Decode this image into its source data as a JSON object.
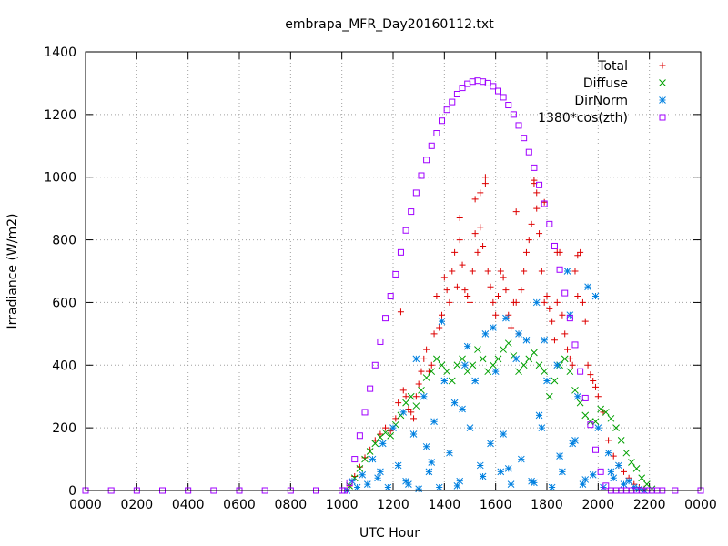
{
  "chart_data": {
    "type": "scatter",
    "title": "embrapa_MFR_Day20160112.txt",
    "xlabel": "UTC Hour",
    "ylabel": "Irradiance (W/m2)",
    "xlim": [
      0,
      24
    ],
    "ylim": [
      0,
      1400
    ],
    "x_tick_labels": [
      "0000",
      "0200",
      "0400",
      "0600",
      "0800",
      "1000",
      "1200",
      "1400",
      "1600",
      "1800",
      "2000",
      "2200",
      "0000"
    ],
    "y_ticks": [
      0,
      200,
      400,
      600,
      800,
      1000,
      1200,
      1400
    ],
    "grid": true,
    "legend_position": "top-right",
    "series": [
      {
        "name": "Total",
        "marker": "plus",
        "color": "#dd0000",
        "x": [
          10.3,
          10.5,
          10.7,
          10.9,
          11.1,
          11.3,
          11.5,
          11.7,
          11.9,
          12.1,
          12.2,
          12.3,
          12.4,
          12.5,
          12.6,
          12.7,
          12.8,
          12.9,
          13.0,
          13.1,
          13.2,
          13.3,
          13.4,
          13.5,
          13.6,
          13.7,
          13.8,
          13.9,
          14.0,
          14.1,
          14.2,
          14.3,
          14.4,
          14.5,
          14.6,
          14.7,
          14.8,
          14.9,
          15.0,
          15.1,
          15.2,
          15.3,
          15.4,
          15.5,
          15.6,
          15.7,
          15.8,
          15.9,
          16.0,
          16.1,
          16.2,
          16.3,
          16.4,
          16.5,
          16.6,
          16.7,
          16.8,
          16.9,
          17.0,
          17.1,
          17.2,
          17.3,
          17.4,
          17.5,
          17.6,
          17.7,
          17.8,
          17.9,
          18.0,
          18.1,
          18.2,
          18.3,
          18.4,
          18.5,
          18.6,
          18.7,
          18.8,
          18.9,
          19.0,
          19.1,
          19.2,
          19.3,
          19.4,
          19.5,
          19.6,
          19.7,
          19.8,
          19.9,
          20.0,
          20.2,
          20.4,
          20.6,
          20.8,
          21.0,
          21.2,
          21.4,
          21.6,
          21.8,
          22.0,
          15.4,
          15.6,
          17.5,
          17.6,
          15.2,
          16.8,
          14.6,
          17.9,
          18.4,
          19.2
        ],
        "y": [
          15,
          45,
          75,
          105,
          130,
          160,
          180,
          200,
          190,
          230,
          280,
          570,
          320,
          300,
          260,
          250,
          230,
          300,
          340,
          380,
          420,
          450,
          380,
          400,
          500,
          620,
          520,
          560,
          680,
          640,
          600,
          700,
          760,
          650,
          800,
          720,
          640,
          620,
          600,
          700,
          820,
          760,
          840,
          780,
          980,
          700,
          650,
          600,
          560,
          620,
          700,
          680,
          640,
          560,
          520,
          600,
          600,
          500,
          640,
          700,
          760,
          800,
          850,
          980,
          900,
          820,
          700,
          600,
          620,
          580,
          540,
          480,
          600,
          760,
          560,
          500,
          450,
          420,
          400,
          700,
          750,
          760,
          600,
          540,
          400,
          370,
          350,
          330,
          300,
          250,
          160,
          110,
          80,
          60,
          40,
          20,
          10,
          5,
          0,
          950,
          1000,
          990,
          950,
          930,
          890,
          870,
          920,
          760,
          620
        ]
      },
      {
        "name": "Diffuse",
        "marker": "cross",
        "color": "#00a000",
        "x": [
          10.3,
          10.5,
          10.7,
          10.9,
          11.1,
          11.3,
          11.5,
          11.7,
          11.9,
          12.1,
          12.3,
          12.5,
          12.7,
          12.9,
          13.1,
          13.3,
          13.5,
          13.7,
          13.9,
          14.1,
          14.3,
          14.5,
          14.7,
          14.9,
          15.1,
          15.3,
          15.5,
          15.7,
          15.9,
          16.1,
          16.3,
          16.5,
          16.7,
          16.9,
          17.1,
          17.3,
          17.5,
          17.7,
          17.9,
          18.1,
          18.3,
          18.5,
          18.7,
          18.9,
          19.1,
          19.3,
          19.5,
          19.7,
          19.9,
          20.1,
          20.3,
          20.5,
          20.7,
          20.9,
          21.1,
          21.3,
          21.5,
          21.7,
          21.9,
          22.1
        ],
        "y": [
          15,
          40,
          70,
          100,
          125,
          150,
          170,
          185,
          175,
          210,
          240,
          280,
          300,
          270,
          320,
          360,
          380,
          420,
          400,
          380,
          350,
          400,
          420,
          380,
          400,
          450,
          420,
          380,
          400,
          420,
          450,
          470,
          430,
          380,
          400,
          420,
          440,
          400,
          380,
          300,
          350,
          400,
          420,
          380,
          320,
          280,
          240,
          220,
          220,
          260,
          250,
          230,
          200,
          160,
          120,
          90,
          70,
          40,
          20,
          5
        ]
      },
      {
        "name": "DirNorm",
        "marker": "star",
        "color": "#0080e0",
        "x": [
          10.2,
          10.4,
          10.6,
          10.8,
          11.0,
          11.2,
          11.4,
          11.6,
          11.8,
          12.0,
          12.2,
          12.4,
          12.6,
          12.8,
          13.0,
          13.2,
          13.4,
          13.6,
          13.8,
          14.0,
          14.2,
          14.4,
          14.6,
          14.8,
          15.0,
          15.2,
          15.4,
          15.6,
          15.8,
          16.0,
          16.2,
          16.4,
          16.6,
          16.8,
          17.0,
          17.2,
          17.4,
          17.6,
          17.8,
          18.0,
          18.2,
          18.4,
          18.6,
          18.8,
          19.0,
          19.2,
          19.4,
          19.6,
          19.8,
          20.0,
          20.2,
          20.4,
          20.6,
          20.8,
          21.0,
          21.2,
          21.4,
          21.6,
          21.8,
          11.5,
          12.5,
          13.5,
          14.5,
          15.5,
          16.5,
          17.5,
          18.5,
          19.5,
          20.5,
          12.9,
          13.9,
          14.9,
          15.9,
          16.9,
          17.9,
          18.9,
          19.9,
          13.3,
          14.7,
          16.3,
          17.7,
          19.1
        ],
        "y": [
          0,
          30,
          10,
          50,
          20,
          100,
          40,
          150,
          10,
          200,
          80,
          250,
          20,
          180,
          5,
          300,
          60,
          220,
          10,
          350,
          120,
          280,
          30,
          400,
          200,
          350,
          80,
          500,
          150,
          380,
          60,
          550,
          20,
          420,
          100,
          480,
          30,
          600,
          200,
          350,
          10,
          400,
          60,
          700,
          150,
          300,
          20,
          650,
          50,
          200,
          10,
          120,
          40,
          80,
          20,
          30,
          10,
          5,
          0,
          60,
          30,
          90,
          15,
          45,
          70,
          25,
          110,
          35,
          60,
          420,
          540,
          460,
          520,
          500,
          480,
          560,
          620,
          140,
          260,
          180,
          240,
          160
        ]
      },
      {
        "name": "1380*cos(zth)",
        "marker": "square",
        "color": "#a000ff",
        "x": [
          0,
          1,
          2,
          3,
          4,
          5,
          6,
          7,
          8,
          9,
          10,
          10.1,
          10.3,
          10.5,
          10.7,
          10.9,
          11.1,
          11.3,
          11.5,
          11.7,
          11.9,
          12.1,
          12.3,
          12.5,
          12.7,
          12.9,
          13.1,
          13.3,
          13.5,
          13.7,
          13.9,
          14.1,
          14.3,
          14.5,
          14.7,
          14.9,
          15.1,
          15.3,
          15.5,
          15.7,
          15.9,
          16.1,
          16.3,
          16.5,
          16.7,
          16.9,
          17.1,
          17.3,
          17.5,
          17.7,
          17.9,
          18.1,
          18.3,
          18.5,
          18.7,
          18.9,
          19.1,
          19.3,
          19.5,
          19.7,
          19.9,
          20.1,
          20.3,
          20.5,
          20.7,
          20.9,
          21.1,
          21.3,
          21.5,
          21.7,
          21.9,
          22.1,
          22.3,
          22.5,
          23,
          24
        ],
        "y": [
          0,
          0,
          0,
          0,
          0,
          0,
          0,
          0,
          0,
          0,
          0,
          0,
          25,
          100,
          175,
          250,
          325,
          400,
          475,
          550,
          620,
          690,
          760,
          830,
          890,
          950,
          1005,
          1055,
          1100,
          1140,
          1180,
          1215,
          1240,
          1265,
          1285,
          1298,
          1305,
          1308,
          1305,
          1300,
          1290,
          1275,
          1255,
          1230,
          1200,
          1165,
          1125,
          1080,
          1030,
          975,
          915,
          850,
          780,
          705,
          630,
          550,
          465,
          380,
          295,
          210,
          130,
          60,
          15,
          0,
          0,
          0,
          0,
          0,
          0,
          0,
          0,
          0,
          0,
          0,
          0,
          0
        ]
      }
    ]
  }
}
